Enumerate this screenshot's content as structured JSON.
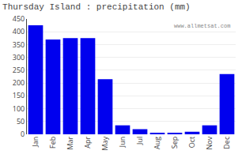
{
  "chart_data": {
    "type": "bar",
    "title": "Thursday Island : precipitation (mm)",
    "categories": [
      "Jan",
      "Feb",
      "Mar",
      "Apr",
      "May",
      "Jun",
      "Jul",
      "Aug",
      "Sep",
      "Oct",
      "Nov",
      "Dec"
    ],
    "values": [
      425,
      370,
      375,
      375,
      215,
      35,
      20,
      5,
      5,
      10,
      35,
      235
    ],
    "color": "#0000EE",
    "ylim": [
      0,
      450
    ],
    "yticks": [
      0,
      50,
      100,
      150,
      200,
      250,
      300,
      350,
      400,
      450
    ],
    "grid": true,
    "annotations": [
      "www.allmetsat.com"
    ]
  }
}
